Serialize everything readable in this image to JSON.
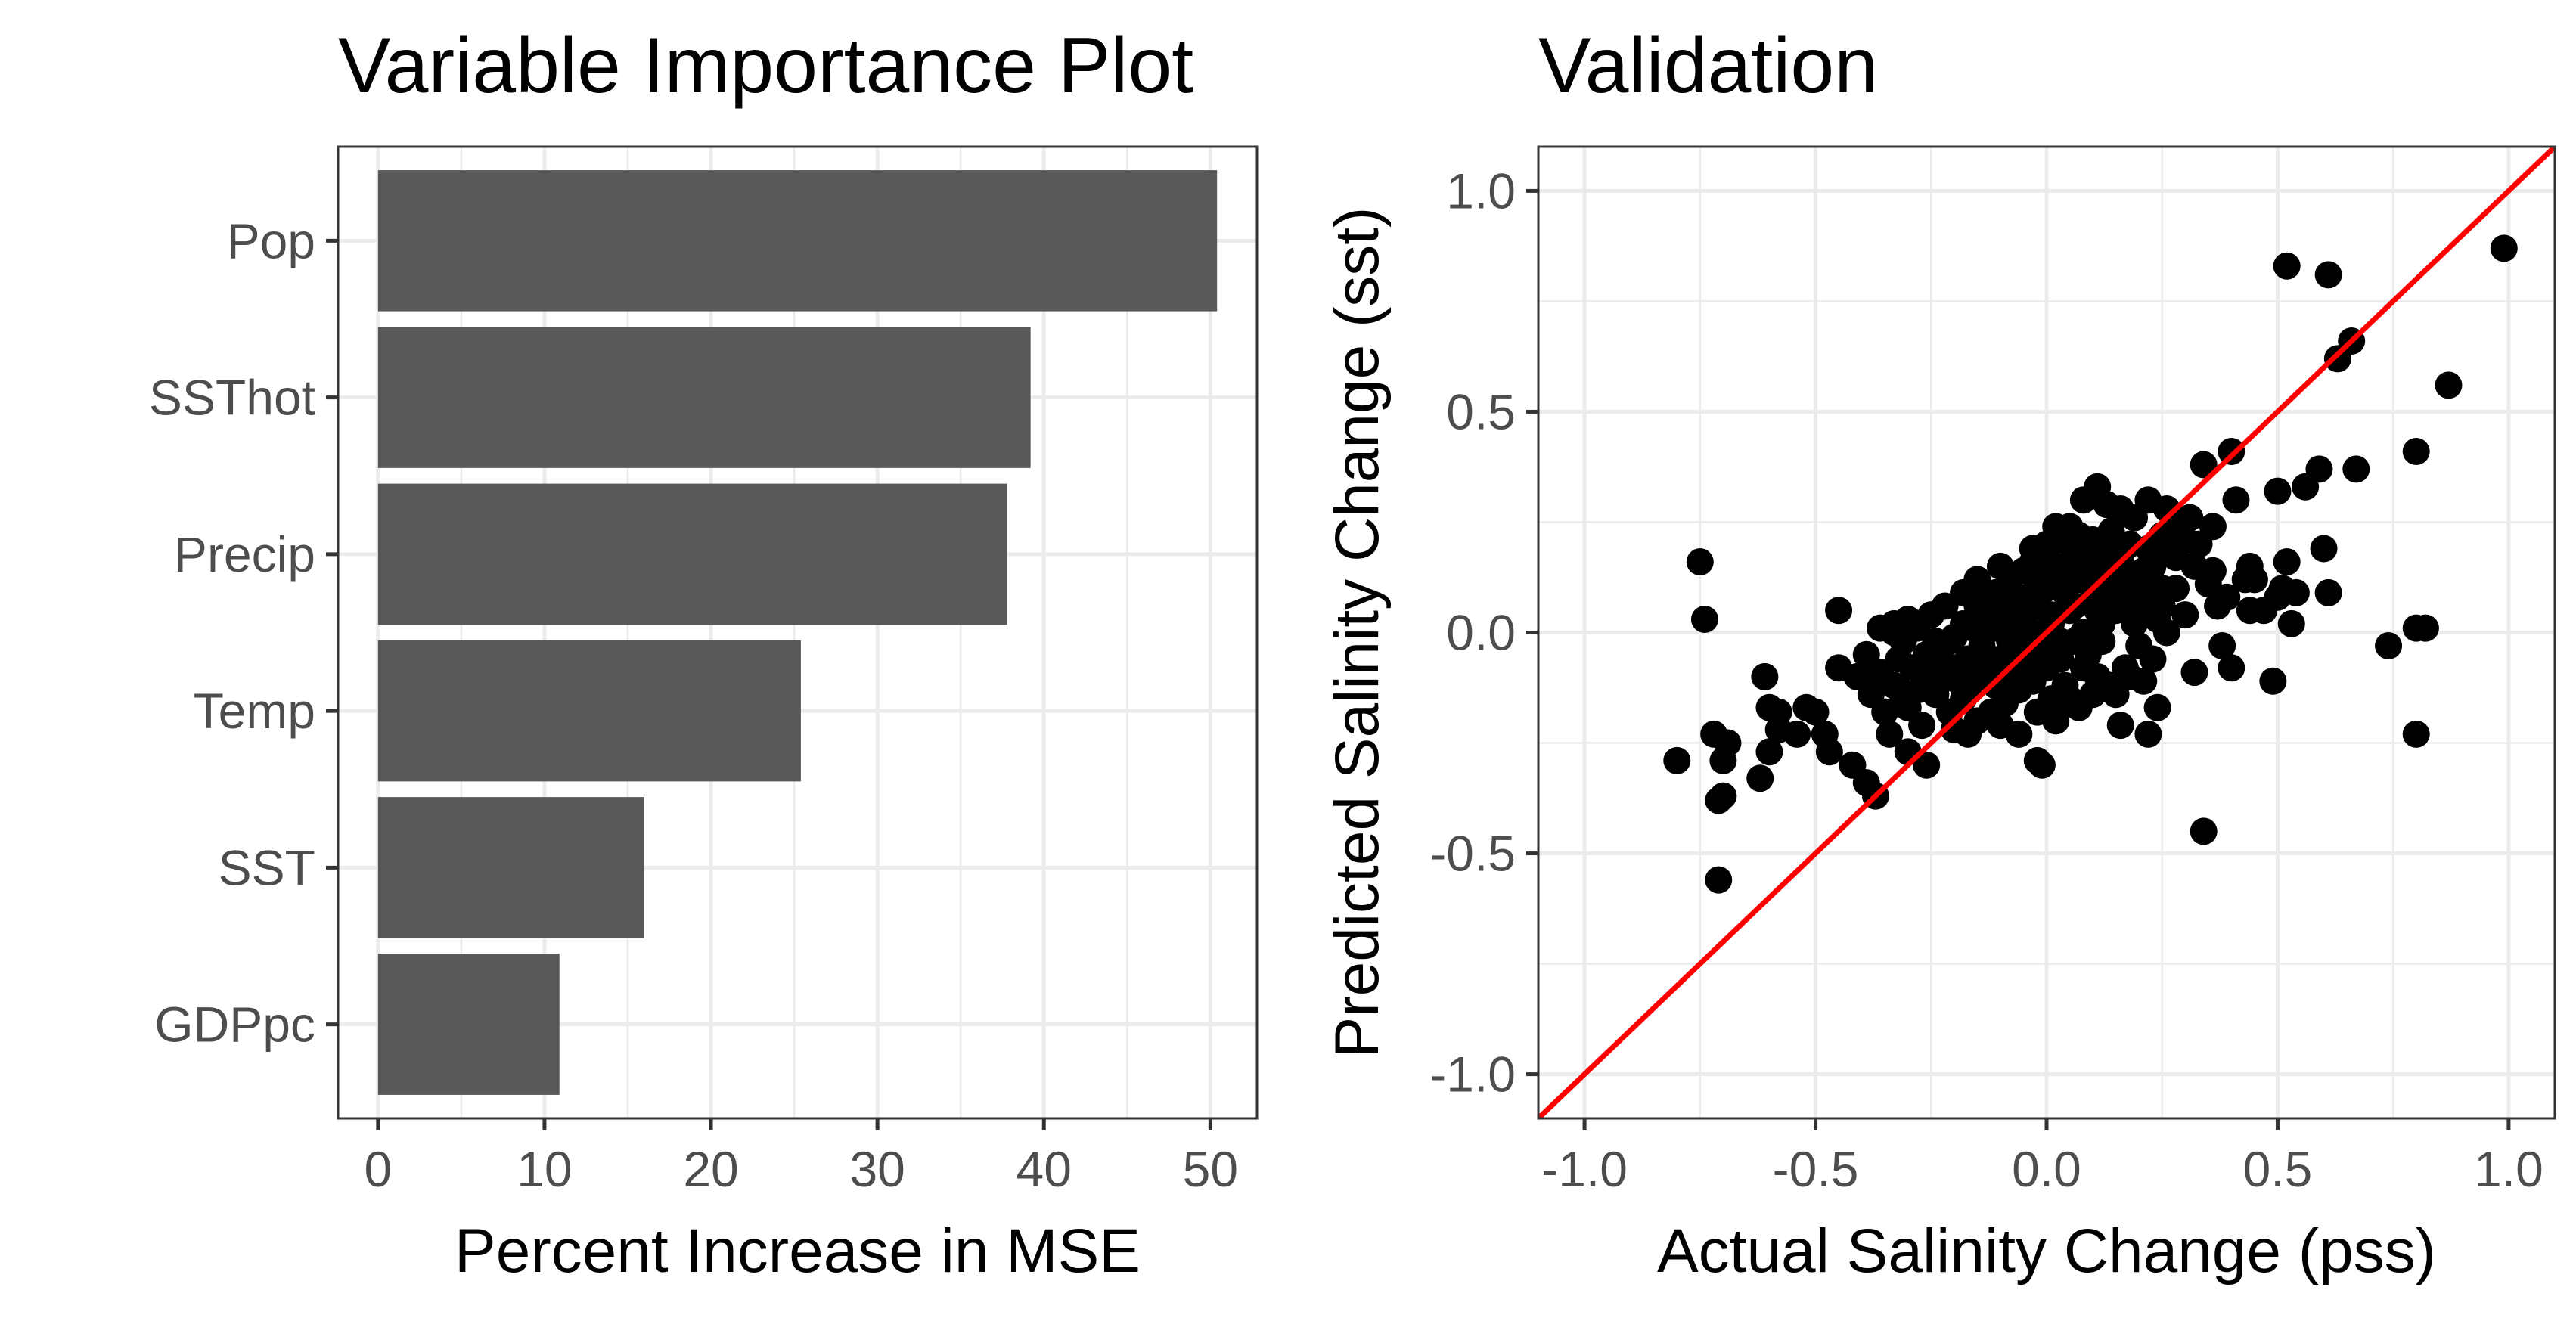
{
  "colors": {
    "bar": "#595959",
    "point": "#000000",
    "reference_line": "#ff0000",
    "grid": "#ebebeb",
    "panel_border": "#333333",
    "tick_text": "#4d4d4d"
  },
  "chart_data": [
    {
      "type": "bar",
      "orientation": "horizontal",
      "title": "Variable Importance Plot",
      "xlabel": "Percent Increase in MSE",
      "ylabel": "",
      "categories": [
        "Pop",
        "SSThot",
        "Precip",
        "Temp",
        "SST",
        "GDPpc"
      ],
      "values": [
        50.4,
        39.2,
        37.8,
        25.4,
        16.0,
        10.9
      ],
      "xlim": [
        -2.4,
        52.8
      ],
      "x_ticks": [
        0,
        10,
        20,
        30,
        40,
        50
      ],
      "x_tick_labels": [
        "0",
        "10",
        "20",
        "30",
        "40",
        "50"
      ],
      "grid": true,
      "legend": "none"
    },
    {
      "type": "scatter",
      "title": "Validation",
      "xlabel": "Actual Salinity Change (pss)",
      "ylabel": "Predicted Salinity Change (sst)",
      "xlim": [
        -1.1,
        1.1
      ],
      "ylim": [
        -1.1,
        1.1
      ],
      "x_ticks": [
        -1.0,
        -0.5,
        0.0,
        0.5,
        1.0
      ],
      "x_tick_labels": [
        "-1.0",
        "-0.5",
        "0.0",
        "0.5",
        "1.0"
      ],
      "y_ticks": [
        -1.0,
        -0.5,
        0.0,
        0.5,
        1.0
      ],
      "y_tick_labels": [
        "-1.0",
        "-0.5",
        "0.0",
        "0.5",
        "1.0"
      ],
      "reference_line": {
        "slope": 1,
        "intercept": 0
      },
      "grid": true,
      "legend": "none",
      "points": [
        [
          0.99,
          0.87
        ],
        [
          0.52,
          0.83
        ],
        [
          0.61,
          0.81
        ],
        [
          0.66,
          0.66
        ],
        [
          0.63,
          0.62
        ],
        [
          0.87,
          0.56
        ],
        [
          0.8,
          0.41
        ],
        [
          0.67,
          0.37
        ],
        [
          0.59,
          0.37
        ],
        [
          0.34,
          0.38
        ],
        [
          0.4,
          0.41
        ],
        [
          0.5,
          0.32
        ],
        [
          0.56,
          0.33
        ],
        [
          0.6,
          0.19
        ],
        [
          0.52,
          0.16
        ],
        [
          0.44,
          0.15
        ],
        [
          0.36,
          0.14
        ],
        [
          0.41,
          0.3
        ],
        [
          0.43,
          0.12
        ],
        [
          0.45,
          0.12
        ],
        [
          0.51,
          0.1
        ],
        [
          0.54,
          0.09
        ],
        [
          0.61,
          0.09
        ],
        [
          0.5,
          0.08
        ],
        [
          0.39,
          0.08
        ],
        [
          0.44,
          0.05
        ],
        [
          0.47,
          0.05
        ],
        [
          0.53,
          0.02
        ],
        [
          0.8,
          0.01
        ],
        [
          0.82,
          0.01
        ],
        [
          0.74,
          -0.03
        ],
        [
          0.49,
          -0.11
        ],
        [
          0.4,
          -0.08
        ],
        [
          0.32,
          -0.09
        ],
        [
          0.38,
          -0.03
        ],
        [
          0.8,
          -0.23
        ],
        [
          0.34,
          -0.45
        ],
        [
          0.22,
          -0.23
        ],
        [
          0.24,
          -0.17
        ],
        [
          0.16,
          -0.21
        ],
        [
          0.21,
          -0.11
        ],
        [
          0.15,
          -0.14
        ],
        [
          0.05,
          -0.15
        ],
        [
          0.11,
          -0.1
        ],
        [
          0.02,
          -0.2
        ],
        [
          -0.01,
          -0.3
        ],
        [
          -0.02,
          -0.29
        ],
        [
          -0.06,
          -0.23
        ],
        [
          -0.1,
          -0.21
        ],
        [
          -0.17,
          -0.23
        ],
        [
          -0.2,
          -0.22
        ],
        [
          -0.26,
          -0.3
        ],
        [
          -0.3,
          -0.27
        ],
        [
          -0.34,
          -0.23
        ],
        [
          -0.37,
          -0.37
        ],
        [
          -0.39,
          -0.34
        ],
        [
          -0.42,
          -0.3
        ],
        [
          -0.47,
          -0.27
        ],
        [
          -0.48,
          -0.23
        ],
        [
          -0.54,
          -0.23
        ],
        [
          -0.58,
          -0.22
        ],
        [
          -0.6,
          -0.27
        ],
        [
          -0.62,
          -0.33
        ],
        [
          -0.8,
          -0.29
        ],
        [
          -0.69,
          -0.25
        ],
        [
          -0.7,
          -0.29
        ],
        [
          -0.72,
          -0.23
        ],
        [
          -0.7,
          -0.37
        ],
        [
          -0.71,
          -0.38
        ],
        [
          -0.71,
          -0.56
        ],
        [
          -0.75,
          0.16
        ],
        [
          -0.74,
          0.03
        ],
        [
          -0.61,
          -0.1
        ],
        [
          -0.6,
          -0.17
        ],
        [
          -0.58,
          -0.18
        ],
        [
          -0.52,
          -0.17
        ],
        [
          -0.5,
          -0.18
        ],
        [
          -0.45,
          0.05
        ],
        [
          -0.45,
          -0.08
        ],
        [
          -0.41,
          -0.1
        ],
        [
          -0.38,
          -0.14
        ],
        [
          -0.36,
          0.01
        ],
        [
          -0.33,
          0.02
        ],
        [
          -0.31,
          -0.02
        ],
        [
          -0.28,
          0.01
        ],
        [
          -0.25,
          0.04
        ],
        [
          -0.22,
          0.06
        ],
        [
          -0.18,
          0.09
        ],
        [
          -0.15,
          0.12
        ],
        [
          -0.13,
          0.08
        ],
        [
          -0.1,
          0.15
        ],
        [
          -0.08,
          0.1
        ],
        [
          -0.05,
          0.14
        ],
        [
          -0.03,
          0.19
        ],
        [
          0.0,
          0.2
        ],
        [
          0.03,
          0.21
        ],
        [
          0.05,
          0.24
        ],
        [
          0.08,
          0.3
        ],
        [
          0.11,
          0.33
        ],
        [
          0.13,
          0.29
        ],
        [
          0.16,
          0.28
        ],
        [
          0.19,
          0.26
        ],
        [
          0.22,
          0.3
        ],
        [
          0.26,
          0.28
        ],
        [
          0.29,
          0.24
        ],
        [
          0.31,
          0.26
        ],
        [
          0.36,
          0.24
        ],
        [
          0.33,
          0.2
        ],
        [
          0.28,
          0.17
        ],
        [
          0.25,
          0.1
        ],
        [
          0.22,
          0.07
        ],
        [
          0.19,
          0.02
        ],
        [
          0.15,
          0.05
        ],
        [
          0.12,
          -0.02
        ],
        [
          0.09,
          -0.05
        ],
        [
          0.06,
          -0.02
        ],
        [
          0.03,
          -0.06
        ],
        [
          0.0,
          -0.08
        ],
        [
          -0.03,
          -0.11
        ],
        [
          -0.06,
          -0.13
        ],
        [
          -0.09,
          -0.16
        ],
        [
          -0.12,
          -0.18
        ],
        [
          -0.15,
          -0.2
        ],
        [
          -0.18,
          -0.15
        ],
        [
          -0.21,
          -0.18
        ],
        [
          -0.24,
          -0.14
        ],
        [
          -0.27,
          -0.21
        ],
        [
          -0.3,
          -0.17
        ],
        [
          -0.33,
          -0.12
        ],
        [
          -0.36,
          -0.09
        ],
        [
          -0.39,
          -0.05
        ],
        [
          -0.32,
          -0.06
        ],
        [
          -0.27,
          -0.08
        ],
        [
          -0.23,
          -0.04
        ],
        [
          -0.2,
          -0.01
        ],
        [
          -0.17,
          -0.06
        ],
        [
          -0.14,
          -0.03
        ],
        [
          -0.11,
          0.01
        ],
        [
          -0.08,
          -0.02
        ],
        [
          -0.05,
          0.03
        ],
        [
          -0.02,
          0.06
        ],
        [
          0.01,
          0.04
        ],
        [
          0.04,
          0.09
        ],
        [
          0.07,
          0.12
        ],
        [
          0.1,
          0.08
        ],
        [
          0.13,
          0.14
        ],
        [
          0.16,
          0.17
        ],
        [
          0.19,
          0.13
        ],
        [
          0.22,
          0.19
        ],
        [
          0.25,
          0.22
        ],
        [
          0.28,
          0.1
        ],
        [
          0.24,
          0.03
        ],
        [
          0.2,
          -0.03
        ],
        [
          0.17,
          -0.08
        ],
        [
          0.14,
          -0.12
        ],
        [
          0.1,
          -0.14
        ],
        [
          0.07,
          -0.17
        ],
        [
          0.04,
          -0.12
        ],
        [
          0.01,
          -0.15
        ],
        [
          -0.02,
          -0.18
        ],
        [
          -0.05,
          -0.07
        ],
        [
          -0.08,
          -0.09
        ],
        [
          -0.11,
          -0.12
        ],
        [
          -0.14,
          -0.1
        ],
        [
          -0.17,
          -0.13
        ],
        [
          -0.2,
          -0.08
        ],
        [
          -0.23,
          -0.11
        ],
        [
          -0.26,
          -0.05
        ],
        [
          -0.29,
          -0.08
        ],
        [
          -0.12,
          0.05
        ],
        [
          -0.07,
          0.07
        ],
        [
          -0.02,
          0.11
        ],
        [
          0.02,
          0.15
        ],
        [
          0.06,
          0.18
        ],
        [
          0.1,
          0.21
        ],
        [
          0.14,
          0.23
        ],
        [
          0.18,
          0.2
        ],
        [
          0.21,
          0.14
        ],
        [
          0.18,
          0.06
        ],
        [
          0.12,
          0.02
        ],
        [
          0.08,
          0.0
        ],
        [
          0.05,
          0.05
        ],
        [
          -0.01,
          0.0
        ],
        [
          -0.04,
          -0.03
        ],
        [
          -0.07,
          -0.05
        ],
        [
          -0.1,
          -0.06
        ],
        [
          -0.13,
          -0.07
        ],
        [
          -0.16,
          -0.09
        ],
        [
          -0.19,
          -0.11
        ],
        [
          -0.22,
          -0.08
        ],
        [
          -0.25,
          -0.1
        ],
        [
          -0.28,
          -0.13
        ],
        [
          -0.31,
          -0.15
        ],
        [
          -0.35,
          -0.18
        ],
        [
          -0.33,
          0.0
        ],
        [
          -0.3,
          0.03
        ],
        [
          -0.16,
          0.01
        ],
        [
          -0.09,
          0.04
        ],
        [
          -0.04,
          0.08
        ],
        [
          0.0,
          0.1
        ],
        [
          0.04,
          0.13
        ],
        [
          0.09,
          0.16
        ],
        [
          0.12,
          0.11
        ],
        [
          0.15,
          0.08
        ],
        [
          0.2,
          0.1
        ],
        [
          0.23,
          0.15
        ],
        [
          0.27,
          0.18
        ],
        [
          0.3,
          0.21
        ],
        [
          0.32,
          0.15
        ],
        [
          0.35,
          0.11
        ],
        [
          0.37,
          0.06
        ],
        [
          0.3,
          0.04
        ],
        [
          0.26,
          0.0
        ],
        [
          0.23,
          -0.06
        ],
        [
          0.18,
          -0.1
        ],
        [
          0.08,
          -0.08
        ],
        [
          0.03,
          -0.02
        ],
        [
          -0.01,
          -0.04
        ],
        [
          -0.06,
          -0.1
        ],
        [
          -0.21,
          -0.02
        ],
        [
          -0.18,
          0.02
        ],
        [
          -0.24,
          -0.02
        ],
        [
          -0.15,
          0.06
        ],
        [
          -0.11,
          0.09
        ],
        [
          -0.06,
          0.0
        ],
        [
          0.01,
          0.02
        ],
        [
          0.06,
          0.06
        ],
        [
          0.11,
          0.05
        ],
        [
          0.13,
          0.18
        ],
        [
          0.07,
          0.22
        ],
        [
          0.02,
          0.24
        ],
        [
          -0.03,
          0.16
        ],
        [
          -0.01,
          0.13
        ],
        [
          0.17,
          0.12
        ],
        [
          0.25,
          0.06
        ]
      ]
    }
  ]
}
